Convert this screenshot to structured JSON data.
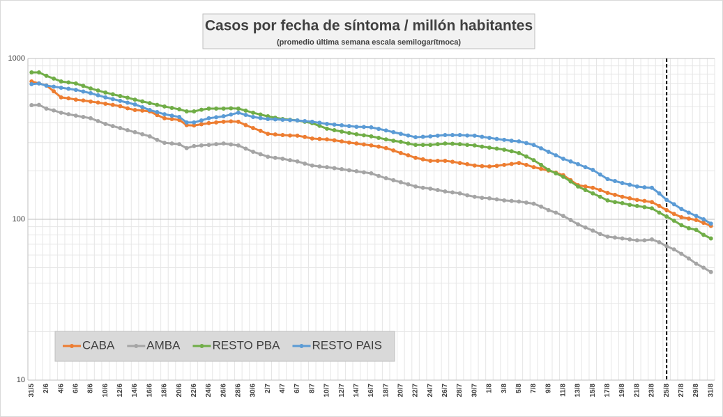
{
  "chart_data": {
    "type": "line",
    "title": "Casos por fecha de síntoma / millón habitantes",
    "subtitle": "(promedio última semana escala semilogarítmoca)",
    "categories": [
      "31/5",
      null,
      "2/6",
      null,
      "4/6",
      null,
      "6/6",
      null,
      "8/6",
      null,
      "10/6",
      null,
      "12/6",
      null,
      "14/6",
      null,
      "16/6",
      null,
      "18/6",
      null,
      "20/6",
      null,
      "22/6",
      null,
      "24/6",
      null,
      "26/6",
      null,
      "28/6",
      null,
      "30/6",
      null,
      "2/7",
      null,
      "4/7",
      null,
      "6/7",
      null,
      "8/7",
      null,
      "10/7",
      null,
      "12/7",
      null,
      "14/7",
      null,
      "16/7",
      null,
      "18/7",
      null,
      "20/7",
      null,
      "22/7",
      null,
      "24/7",
      null,
      "26/7",
      null,
      "28/7",
      null,
      "30/7",
      null,
      "1/8",
      null,
      "3/8",
      null,
      "5/8",
      null,
      "7/8",
      null,
      "9/8",
      null,
      "11/8",
      null,
      "13/8",
      null,
      "15/8",
      null,
      "17/8",
      null,
      "19/8",
      null,
      "21/8",
      null,
      "23/8",
      null,
      "25/8",
      null,
      "27/8",
      null,
      "29/8",
      null,
      "31/8"
    ],
    "series": [
      {
        "name": "CABA",
        "color": "#ed7d31",
        "values": [
          720,
          700,
          680,
          625,
          573,
          565,
          555,
          548,
          540,
          532,
          523,
          515,
          505,
          490,
          478,
          474,
          469,
          445,
          425,
          420,
          415,
          385,
          383,
          390,
          396,
          400,
          404,
          406,
          404,
          385,
          369,
          355,
          340,
          337,
          334,
          332,
          331,
          325,
          318,
          316,
          314,
          310,
          305,
          300,
          296,
          292,
          288,
          283,
          277,
          268,
          258,
          250,
          241,
          236,
          231,
          231,
          231,
          228,
          224,
          220,
          216,
          214,
          213,
          215,
          218,
          221,
          224,
          218,
          211,
          206,
          201,
          195,
          188,
          175,
          163,
          160,
          157,
          152,
          146,
          142,
          138,
          135,
          132,
          130,
          128,
          121,
          114,
          108,
          103,
          101,
          99,
          95,
          91
        ]
      },
      {
        "name": "AMBA",
        "color": "#a5a5a5",
        "values": [
          513,
          515,
          488,
          475,
          460,
          450,
          441,
          433,
          425,
          408,
          392,
          380,
          369,
          358,
          348,
          338,
          328,
          312,
          299,
          296,
          293,
          277,
          285,
          288,
          290,
          293,
          296,
          292,
          288,
          275,
          263,
          254,
          245,
          241,
          238,
          233,
          229,
          222,
          216,
          213,
          211,
          208,
          205,
          202,
          199,
          196,
          193,
          186,
          180,
          175,
          170,
          165,
          160,
          157,
          155,
          152,
          149,
          147,
          145,
          141,
          138,
          136,
          135,
          133,
          131,
          130,
          129,
          127,
          125,
          120,
          114,
          110,
          105,
          99,
          93,
          89,
          85,
          81,
          78,
          77,
          76,
          75,
          74,
          74,
          75,
          72,
          68,
          65,
          61,
          57,
          53,
          50,
          47
        ]
      },
      {
        "name": "RESTO PBA",
        "color": "#70ad47",
        "values": [
          819,
          819,
          780,
          750,
          720,
          710,
          699,
          675,
          651,
          632,
          614,
          599,
          584,
          570,
          555,
          541,
          528,
          515,
          503,
          493,
          483,
          469,
          469,
          480,
          488,
          488,
          488,
          490,
          488,
          474,
          460,
          448,
          437,
          428,
          420,
          416,
          412,
          404,
          396,
          381,
          366,
          358,
          351,
          344,
          338,
          333,
          328,
          321,
          314,
          308,
          303,
          296,
          290,
          290,
          290,
          293,
          296,
          295,
          293,
          290,
          288,
          283,
          279,
          275,
          271,
          265,
          258,
          246,
          233,
          218,
          203,
          193,
          184,
          172,
          160,
          152,
          145,
          138,
          131,
          128,
          126,
          123,
          121,
          119,
          117,
          110,
          104,
          98,
          92,
          88,
          86,
          80,
          76
        ]
      },
      {
        "name": "RESTO PAIS",
        "color": "#5b9bd5",
        "values": [
          692,
          699,
          678,
          668,
          658,
          648,
          638,
          623,
          608,
          590,
          573,
          559,
          545,
          531,
          518,
          498,
          478,
          464,
          450,
          441,
          433,
          400,
          400,
          412,
          425,
          431,
          437,
          448,
          460,
          446,
          433,
          426,
          420,
          418,
          416,
          414,
          412,
          408,
          404,
          398,
          392,
          388,
          384,
          380,
          376,
          375,
          373,
          365,
          357,
          348,
          340,
          332,
          324,
          326,
          328,
          331,
          334,
          334,
          334,
          332,
          331,
          326,
          321,
          316,
          312,
          308,
          305,
          298,
          290,
          276,
          263,
          250,
          238,
          229,
          220,
          211,
          203,
          190,
          178,
          173,
          168,
          164,
          160,
          158,
          157,
          145,
          132,
          124,
          116,
          110,
          105,
          100,
          94
        ]
      }
    ],
    "ylim": [
      10,
      1000
    ],
    "yticks": [
      10,
      100,
      1000
    ],
    "log_scale": true,
    "grid": true,
    "vline": "25/8",
    "legend": "lower left"
  }
}
